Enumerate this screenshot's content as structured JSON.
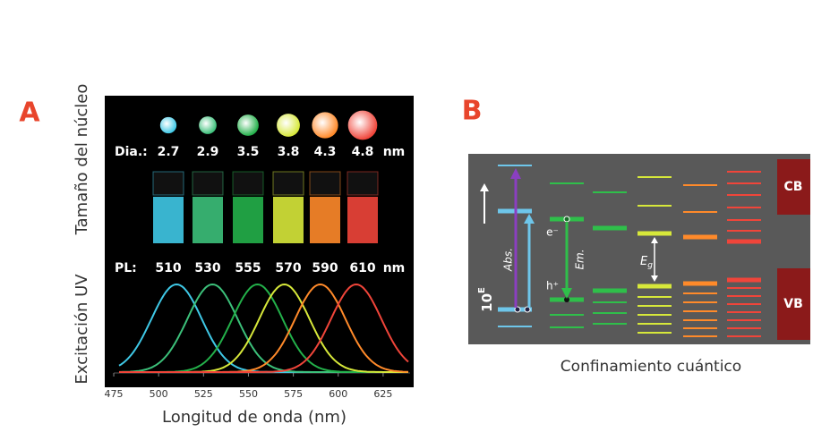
{
  "panel_a": {
    "label": "A",
    "y_label_top": "Tamaño del núcleo",
    "y_label_bottom": "Excitación UV",
    "x_label": "Longitud de onda (nm)",
    "dia_label": "Dia.:",
    "diameters": [
      2.7,
      2.9,
      3.5,
      3.8,
      4.3,
      4.8
    ],
    "dia_unit": "nm",
    "pl_label": "PL:",
    "pl": [
      510,
      530,
      555,
      570,
      590,
      610
    ],
    "pl_unit": "nm",
    "colors": [
      "#3fc8e6",
      "#3cc07a",
      "#23b04a",
      "#d7e83a",
      "#ff8a2a",
      "#f0453a"
    ],
    "xlim": [
      470,
      642
    ],
    "xticks": [
      475,
      500,
      525,
      550,
      575,
      600,
      625
    ]
  },
  "panel_b": {
    "label": "B",
    "caption": "Confinamiento cuántico",
    "cb": "CB",
    "vb": "VB",
    "abs": "Abs.",
    "em": "Em.",
    "electron": "e⁻",
    "hole": "h⁺",
    "eg": "E",
    "eg_sub": "g",
    "energy_base": "10",
    "energy_exp": "E"
  }
}
